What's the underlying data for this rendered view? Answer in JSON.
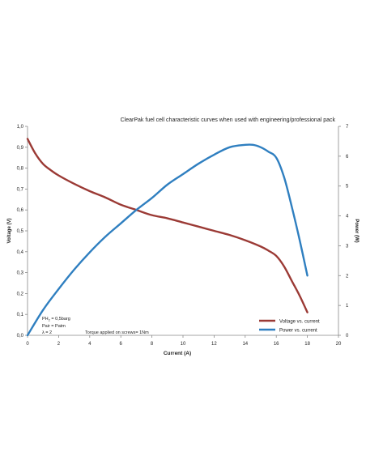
{
  "chart_data": {
    "type": "line",
    "title": "ClearPak fuel cell characteristic curves when used with engineering/professional pack",
    "xlabel": "Current (A)",
    "ylabel_left": "Voltage (V)",
    "ylabel_right": "Power (W)",
    "xlim": [
      0,
      20
    ],
    "ylim_left": [
      0,
      1.0
    ],
    "ylim_right": [
      0,
      7
    ],
    "x_ticks": [
      "0",
      "2",
      "4",
      "6",
      "8",
      "10",
      "12",
      "14",
      "16",
      "18",
      "20"
    ],
    "y_left_ticks": [
      "0,0",
      "0,1",
      "0,2",
      "0,3",
      "0,4",
      "0,5",
      "0,6",
      "0,7",
      "0,8",
      "0,9",
      "1,0"
    ],
    "y_right_ticks": [
      "0",
      "1",
      "2",
      "3",
      "4",
      "5",
      "6",
      "7"
    ],
    "grid": false,
    "legend_position": "bottom-right",
    "series": [
      {
        "name": "Voltage vs. current",
        "axis": "left",
        "color": "#9b3a35",
        "x": [
          0,
          0.5,
          1,
          1.5,
          2,
          3,
          4,
          5,
          6,
          7,
          8,
          9,
          10,
          11,
          12,
          13,
          14,
          15,
          15.5,
          16,
          16.5,
          17,
          17.5,
          18
        ],
        "y": [
          0.94,
          0.87,
          0.82,
          0.79,
          0.765,
          0.725,
          0.69,
          0.66,
          0.625,
          0.6,
          0.575,
          0.56,
          0.54,
          0.52,
          0.5,
          0.48,
          0.455,
          0.425,
          0.405,
          0.38,
          0.33,
          0.26,
          0.19,
          0.11
        ]
      },
      {
        "name": "Power vs. current",
        "axis": "right",
        "color": "#2f7fc0",
        "x": [
          0,
          1,
          2,
          3,
          4,
          5,
          6,
          7,
          8,
          9,
          10,
          11,
          12,
          13,
          14,
          14.5,
          15,
          15.5,
          16,
          16.5,
          17,
          17.5,
          18
        ],
        "y": [
          0,
          0.85,
          1.55,
          2.2,
          2.78,
          3.3,
          3.75,
          4.2,
          4.6,
          5.05,
          5.4,
          5.75,
          6.05,
          6.3,
          6.38,
          6.38,
          6.3,
          6.15,
          5.95,
          5.3,
          4.3,
          3.2,
          2.0
        ]
      }
    ]
  },
  "annotations": {
    "line1_main": "PH",
    "line1_sub": "2",
    "line1_rest": " = 0,5barg",
    "line2": "Pair = Patm",
    "line3": "λ = 2",
    "torque": "Torque applied on screws= 1Nm"
  }
}
